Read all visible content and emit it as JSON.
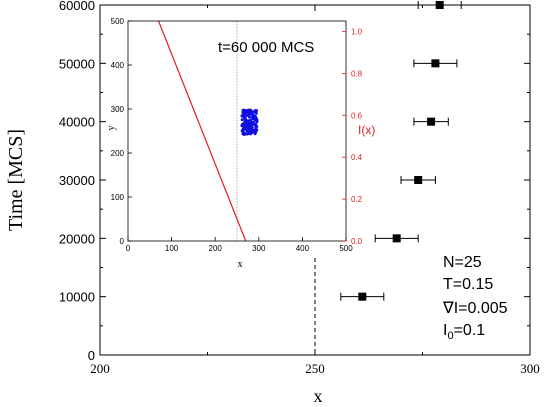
{
  "chart_data": [
    {
      "type": "scatter",
      "xlabel": "x",
      "ylabel": "Time [MCS]",
      "xlim": [
        200,
        300
      ],
      "ylim": [
        0,
        60000
      ],
      "x_ticks": [
        200,
        250,
        300
      ],
      "y_ticks": [
        0,
        10000,
        20000,
        30000,
        40000,
        50000,
        60000
      ],
      "reference_line_x": 250,
      "series": [
        {
          "points": [
            {
              "x": 261,
              "y": 10000,
              "xerr": 5
            },
            {
              "x": 269,
              "y": 20000,
              "xerr": 5
            },
            {
              "x": 274,
              "y": 30000,
              "xerr": 4
            },
            {
              "x": 277,
              "y": 40000,
              "xerr": 4
            },
            {
              "x": 278,
              "y": 50000,
              "xerr": 5
            },
            {
              "x": 279,
              "y": 60000,
              "xerr": 5
            }
          ]
        }
      ],
      "parameters": [
        "N=25",
        "T=0.15",
        "∇I=0.005"
      ],
      "param_i0": {
        "base": "I",
        "sub": "0",
        "rest": "=0.1"
      },
      "grid": false
    },
    {
      "type": "scatter",
      "title": "t=60 000 MCS",
      "xlabel": "x",
      "ylabel": "y",
      "right_ylabel": "I(x)",
      "xlim": [
        0,
        500
      ],
      "ylim": [
        0,
        500
      ],
      "right_ylim": [
        0,
        1.05
      ],
      "x_ticks": [
        0,
        100,
        200,
        300,
        400,
        500
      ],
      "y_ticks": [
        0,
        100,
        200,
        300,
        400,
        500
      ],
      "right_ticks": [
        "0.0",
        "0.2",
        "0.4",
        "0.6",
        "0.8",
        "1.0"
      ],
      "reference_line_x": 250,
      "cluster": {
        "center_x": 279,
        "center_y": 270,
        "half_width": 18,
        "half_height": 28,
        "count": 160,
        "color": "#1010e0"
      },
      "intensity_line": {
        "x_at_zero": 270,
        "x_at_top": 70,
        "color": "#e02020"
      },
      "accent_color": "#e02020"
    }
  ]
}
